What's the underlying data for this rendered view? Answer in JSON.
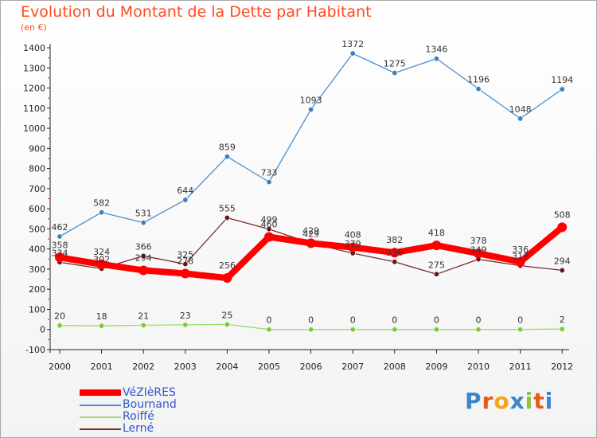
{
  "header": {
    "title": "Evolution du Montant de la Dette par Habitant",
    "unit": "(en €)"
  },
  "chart_data": {
    "type": "line",
    "title": "Evolution du Montant de la Dette par Habitant",
    "ylabel": "(en €)",
    "xlabel": "",
    "ylim": [
      -100,
      1400
    ],
    "yticks": [
      -100,
      0,
      100,
      200,
      300,
      400,
      500,
      600,
      700,
      800,
      900,
      1000,
      1100,
      1200,
      1300,
      1400
    ],
    "grid": false,
    "legend_position": "bottom-left",
    "x": [
      "2000",
      "2001",
      "2002",
      "2003",
      "2004",
      "2005",
      "2006",
      "2007",
      "2008",
      "2009",
      "2010",
      "2011",
      "2012"
    ],
    "series": [
      {
        "name": "Lerné",
        "color": "#7a2a2a",
        "marker": "#5a1a1a",
        "values": [
          334,
          302,
          366,
          325,
          555,
          499,
          429,
          379,
          336,
          275,
          349,
          317,
          294
        ]
      },
      {
        "name": "Roiffé",
        "color": "#99dd66",
        "marker": "#77cc33",
        "values": [
          20,
          18,
          21,
          23,
          25,
          0,
          0,
          0,
          0,
          0,
          0,
          0,
          2
        ]
      },
      {
        "name": "Bournand",
        "color": "#4a90d0",
        "marker": "#3a80c0",
        "values": [
          462,
          582,
          531,
          644,
          859,
          733,
          1093,
          1372,
          1275,
          1346,
          1196,
          1048,
          1194
        ]
      },
      {
        "name": "VéZIèRES",
        "color": "#ff0000",
        "marker": "#ff0000",
        "values": [
          358,
          324,
          294,
          278,
          256,
          460,
          429,
          408,
          382,
          418,
          378,
          336,
          508
        ]
      }
    ]
  },
  "legend": [
    {
      "label": "VéZIèRES",
      "color": "#ff0000"
    },
    {
      "label": "Bournand",
      "color": "#4a90d0"
    },
    {
      "label": "Roiffé",
      "color": "#99dd66"
    },
    {
      "label": "Lerné",
      "color": "#7a2a2a"
    }
  ],
  "logo": {
    "text": "Proxiti",
    "letters": [
      "P",
      "r",
      "o",
      "x",
      "i",
      "t",
      "i"
    ],
    "colors": [
      "#3a86c8",
      "#e65a1a",
      "#f2a51a",
      "#3a86c8",
      "#8bc34a",
      "#e65a1a",
      "#3a86c8"
    ]
  }
}
